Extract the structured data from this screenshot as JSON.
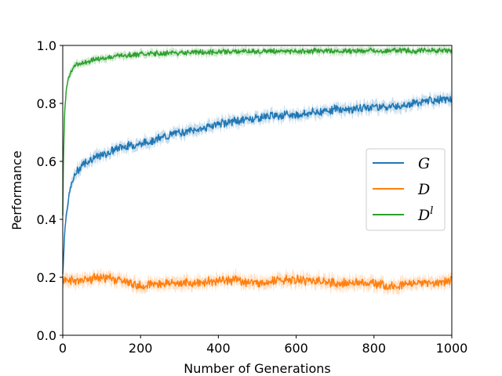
{
  "chart_data": {
    "type": "line",
    "title": "",
    "xlabel": "Number of Generations",
    "ylabel": "Performance",
    "xlim": [
      0,
      1000
    ],
    "ylim": [
      0,
      1.0
    ],
    "x_ticks": [
      0,
      200,
      400,
      600,
      800,
      1000
    ],
    "y_ticks": [
      0.0,
      0.2,
      0.4,
      0.6,
      0.8,
      1.0
    ],
    "x_tick_labels": [
      "0",
      "200",
      "400",
      "600",
      "800",
      "1000"
    ],
    "y_tick_labels": [
      "0.0",
      "0.2",
      "0.4",
      "0.6",
      "0.8",
      "1.0"
    ],
    "grid": false,
    "legend_position": "right",
    "series": [
      {
        "name": "G",
        "color": "#1f77b4",
        "x": [
          0,
          5,
          10,
          20,
          30,
          50,
          75,
          100,
          150,
          200,
          250,
          300,
          350,
          400,
          450,
          500,
          550,
          600,
          650,
          700,
          750,
          800,
          850,
          900,
          950,
          1000
        ],
        "y": [
          0.21,
          0.36,
          0.43,
          0.51,
          0.55,
          0.59,
          0.61,
          0.62,
          0.65,
          0.66,
          0.68,
          0.7,
          0.71,
          0.73,
          0.74,
          0.75,
          0.76,
          0.76,
          0.77,
          0.78,
          0.78,
          0.79,
          0.79,
          0.8,
          0.81,
          0.815
        ]
      },
      {
        "name": "D",
        "color": "#ff7f0e",
        "x": [
          0,
          50,
          100,
          150,
          200,
          250,
          300,
          350,
          400,
          450,
          500,
          550,
          600,
          650,
          700,
          750,
          800,
          850,
          900,
          950,
          1000
        ],
        "y": [
          0.19,
          0.19,
          0.2,
          0.19,
          0.17,
          0.18,
          0.18,
          0.18,
          0.19,
          0.19,
          0.18,
          0.19,
          0.19,
          0.19,
          0.18,
          0.18,
          0.18,
          0.17,
          0.18,
          0.18,
          0.19
        ]
      },
      {
        "name": "D",
        "name_superscript": "l",
        "color": "#2ca02c",
        "x": [
          0,
          2,
          5,
          10,
          20,
          30,
          50,
          75,
          100,
          150,
          200,
          300,
          400,
          500,
          600,
          700,
          800,
          900,
          1000
        ],
        "y": [
          0.42,
          0.62,
          0.78,
          0.86,
          0.91,
          0.93,
          0.94,
          0.95,
          0.955,
          0.965,
          0.97,
          0.975,
          0.978,
          0.98,
          0.98,
          0.981,
          0.982,
          0.982,
          0.983
        ]
      }
    ]
  }
}
